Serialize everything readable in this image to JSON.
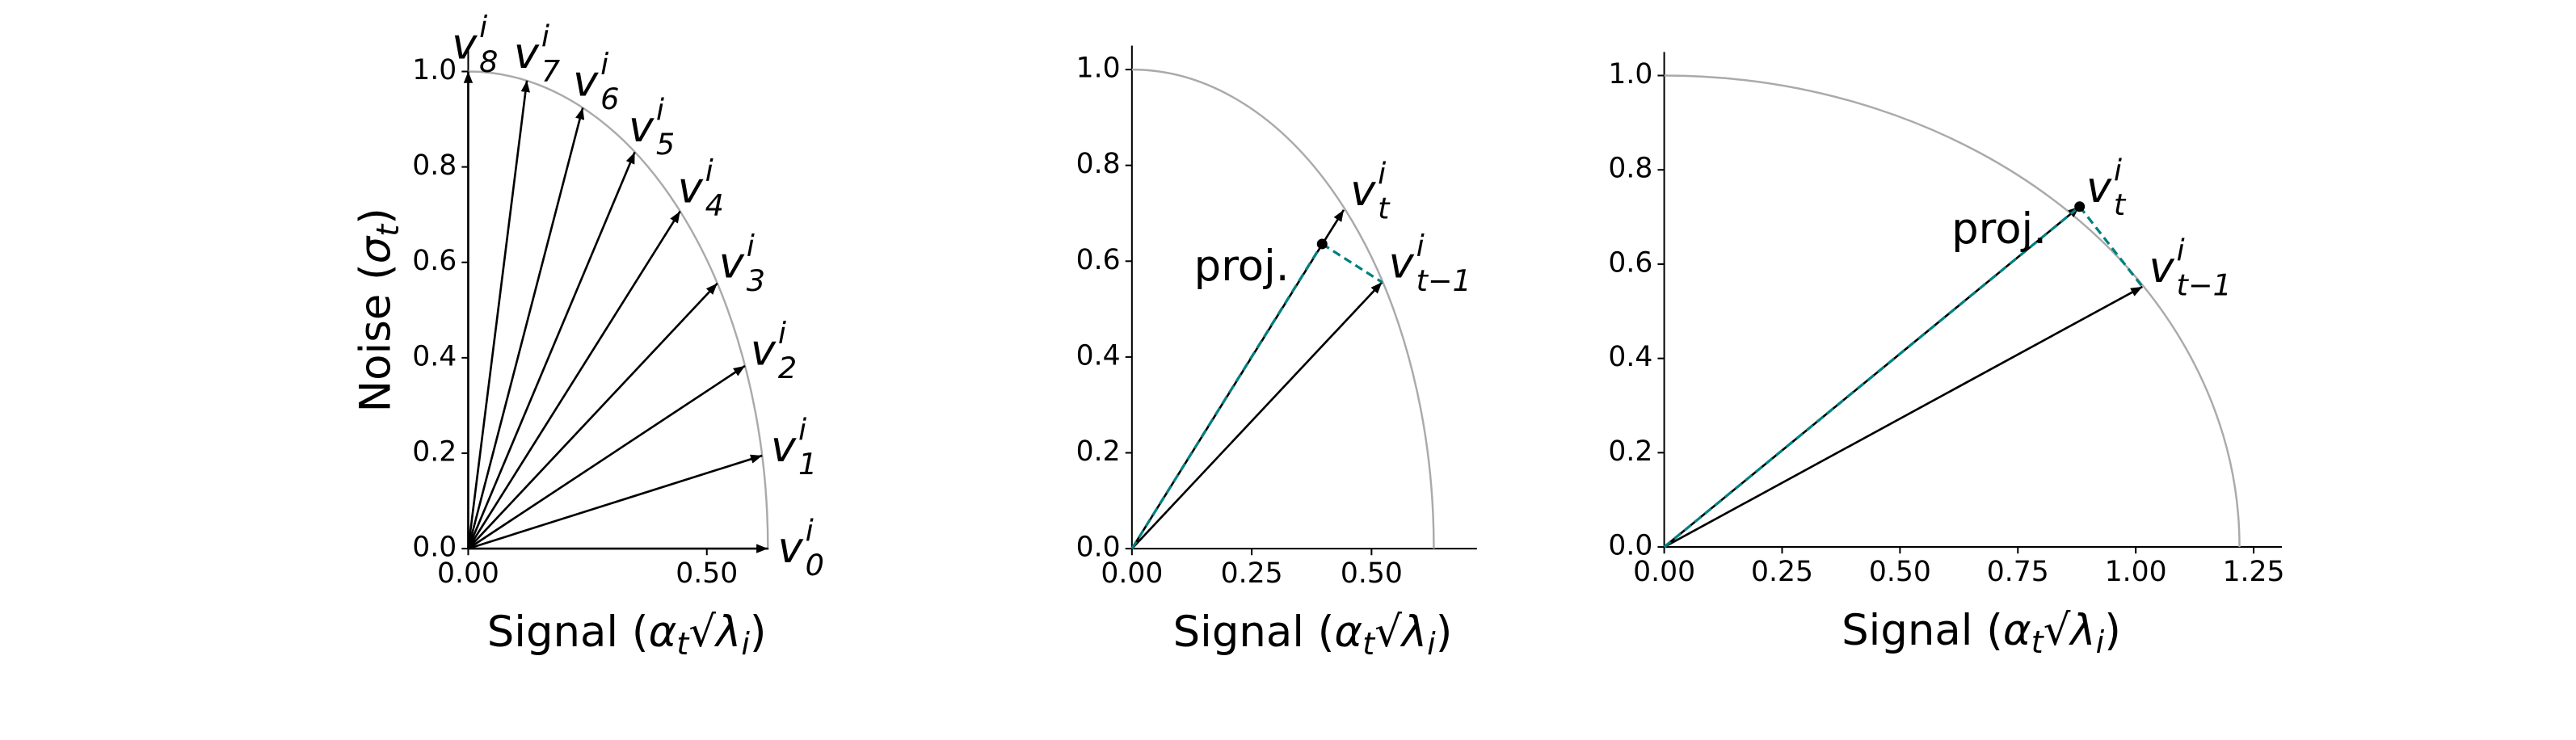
{
  "chart_data": [
    {
      "type": "vector",
      "xlabel": [
        {
          "text": "Signal ("
        },
        {
          "text": "α"
        },
        {
          "text": "t",
          "sub": true
        },
        {
          "text": "√"
        },
        {
          "text": "λ"
        },
        {
          "text": "i",
          "sub": true
        },
        {
          "text": ")"
        }
      ],
      "ylabel": [
        {
          "text": "Noise ("
        },
        {
          "text": "σ"
        },
        {
          "text": "t",
          "sub": true
        },
        {
          "text": ")"
        }
      ],
      "xlim": [
        0,
        0.63
      ],
      "ylim": [
        0,
        1.05
      ],
      "xticks": [
        {
          "value": 0,
          "label": "0.00"
        },
        {
          "value": 0.5,
          "label": "0.50"
        }
      ],
      "yticks": [
        {
          "value": 0,
          "label": "0.0"
        },
        {
          "value": 0.2,
          "label": "0.2"
        },
        {
          "value": 0.4,
          "label": "0.4"
        },
        {
          "value": 0.6,
          "label": "0.6"
        },
        {
          "value": 0.8,
          "label": "0.8"
        },
        {
          "value": 1,
          "label": "1.0"
        }
      ],
      "arc_x_radius": 0.628,
      "arc_y_radius": 1,
      "vectors": [
        {
          "label": {
            "base": "v",
            "sup": "i",
            "sub": "0"
          },
          "x": 0.628,
          "y": 0
        },
        {
          "label": {
            "base": "v",
            "sup": "i",
            "sub": "1"
          },
          "x": 0.616,
          "y": 0.195
        },
        {
          "label": {
            "base": "v",
            "sup": "i",
            "sub": "2"
          },
          "x": 0.58,
          "y": 0.383
        },
        {
          "label": {
            "base": "v",
            "sup": "i",
            "sub": "3"
          },
          "x": 0.522,
          "y": 0.556
        },
        {
          "label": {
            "base": "v",
            "sup": "i",
            "sub": "4"
          },
          "x": 0.444,
          "y": 0.707
        },
        {
          "label": {
            "base": "v",
            "sup": "i",
            "sub": "5"
          },
          "x": 0.349,
          "y": 0.831
        },
        {
          "label": {
            "base": "v",
            "sup": "i",
            "sub": "6"
          },
          "x": 0.24,
          "y": 0.924
        },
        {
          "label": {
            "base": "v",
            "sup": "i",
            "sub": "7"
          },
          "x": 0.123,
          "y": 0.981
        },
        {
          "label": {
            "base": "v",
            "sup": "i",
            "sub": "8"
          },
          "x": 0,
          "y": 1
        }
      ]
    },
    {
      "type": "projection",
      "xlabel": [
        {
          "text": "Signal ("
        },
        {
          "text": "α"
        },
        {
          "text": "t",
          "sub": true
        },
        {
          "text": "√"
        },
        {
          "text": "λ"
        },
        {
          "text": "i",
          "sub": true
        },
        {
          "text": ")"
        }
      ],
      "xlim": [
        0,
        0.72
      ],
      "ylim": [
        0,
        1.05
      ],
      "xticks": [
        {
          "value": 0,
          "label": "0.00"
        },
        {
          "value": 0.25,
          "label": "0.25"
        },
        {
          "value": 0.5,
          "label": "0.50"
        }
      ],
      "yticks": [
        {
          "value": 0,
          "label": "0.0"
        },
        {
          "value": 0.2,
          "label": "0.2"
        },
        {
          "value": 0.4,
          "label": "0.4"
        },
        {
          "value": 0.6,
          "label": "0.6"
        },
        {
          "value": 0.8,
          "label": "0.8"
        },
        {
          "value": 1,
          "label": "1.0"
        }
      ],
      "arc_x_radius": 0.63,
      "arc_y_radius": 1,
      "vectors": [
        {
          "label": {
            "base": "v",
            "sup": "i",
            "sub": "t−1"
          },
          "x": 0.522,
          "y": 0.556
        },
        {
          "label": {
            "base": "v",
            "sup": "i",
            "sub": "t"
          },
          "x": 0.442,
          "y": 0.707
        }
      ],
      "projection": {
        "label": "proj.",
        "x": 0.397,
        "y": 0.636
      },
      "projection_color": "#008080"
    },
    {
      "type": "projection",
      "xlabel": [
        {
          "text": "Signal ("
        },
        {
          "text": "α"
        },
        {
          "text": "t",
          "sub": true
        },
        {
          "text": "√"
        },
        {
          "text": "λ"
        },
        {
          "text": "i",
          "sub": true
        },
        {
          "text": ")"
        }
      ],
      "xlim": [
        0,
        1.31
      ],
      "ylim": [
        0,
        1.05
      ],
      "xticks": [
        {
          "value": 0,
          "label": "0.00"
        },
        {
          "value": 0.25,
          "label": "0.25"
        },
        {
          "value": 0.5,
          "label": "0.50"
        },
        {
          "value": 0.75,
          "label": "0.75"
        },
        {
          "value": 1,
          "label": "1.00"
        },
        {
          "value": 1.25,
          "label": "1.25"
        }
      ],
      "yticks": [
        {
          "value": 0,
          "label": "0.0"
        },
        {
          "value": 0.2,
          "label": "0.2"
        },
        {
          "value": 0.4,
          "label": "0.4"
        },
        {
          "value": 0.6,
          "label": "0.6"
        },
        {
          "value": 0.8,
          "label": "0.8"
        },
        {
          "value": 1,
          "label": "1.0"
        }
      ],
      "arc_x_radius": 1.22,
      "arc_y_radius": 1,
      "vectors": [
        {
          "label": {
            "base": "v",
            "sup": "i",
            "sub": "t−1"
          },
          "x": 1.014,
          "y": 0.552
        },
        {
          "label": {
            "base": "v",
            "sup": "i",
            "sub": "t"
          },
          "x": 0.881,
          "y": 0.722
        }
      ],
      "projection": {
        "label": "proj.",
        "x": 0.881,
        "y": 0.722
      },
      "projection_color": "#008080"
    }
  ]
}
